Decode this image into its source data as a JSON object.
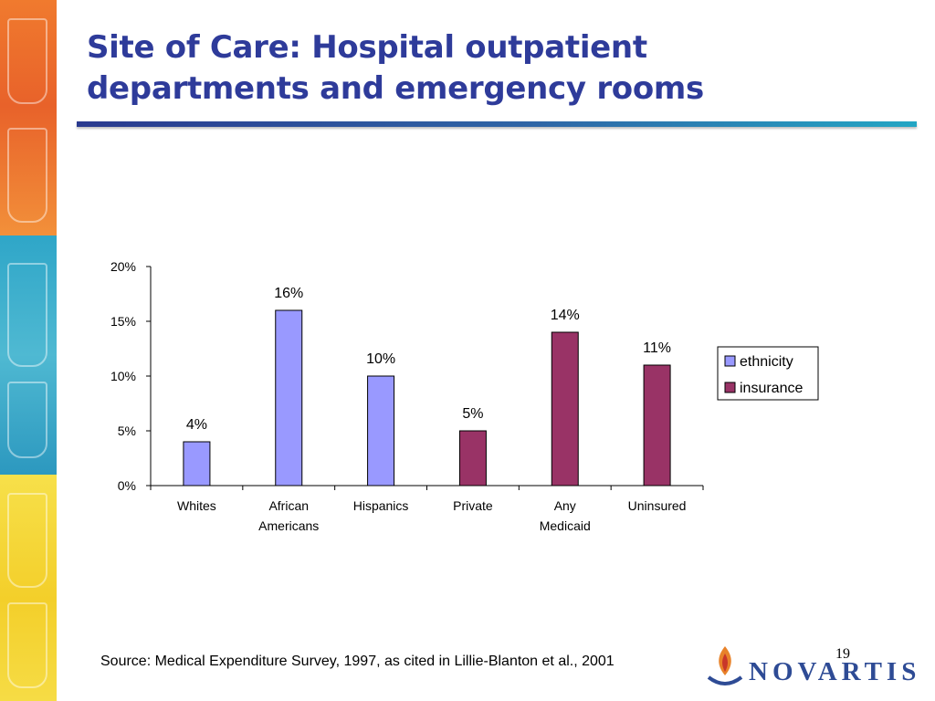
{
  "slide": {
    "title": "Site of Care:  Hospital outpatient\ndepartments and emergency rooms",
    "source": "Source:  Medical Expenditure Survey, 1997, as cited in Lillie-Blanton et al., 2001",
    "page_number": "19",
    "logo_text": "NOVARTIS"
  },
  "colors": {
    "title": "#2e3b9a",
    "ethnicity": "#9999ff",
    "insurance": "#993366"
  },
  "chart_data": {
    "type": "bar",
    "categories": [
      "Whites",
      "African Americans",
      "Hispanics",
      "Private",
      "Any Medicaid",
      "Uninsured"
    ],
    "category_lines": [
      [
        "Whites"
      ],
      [
        "African",
        "Americans"
      ],
      [
        "Hispanics"
      ],
      [
        "Private"
      ],
      [
        "Any",
        "Medicaid"
      ],
      [
        "Uninsured"
      ]
    ],
    "series": [
      {
        "name": "ethnicity",
        "color": "#9999ff",
        "values": [
          4,
          16,
          10,
          null,
          null,
          null
        ]
      },
      {
        "name": "insurance",
        "color": "#993366",
        "values": [
          null,
          null,
          null,
          5,
          14,
          11
        ]
      }
    ],
    "data_labels": [
      "4%",
      "16%",
      "10%",
      "5%",
      "14%",
      "11%"
    ],
    "ylim": [
      0,
      20
    ],
    "yticks": [
      0,
      5,
      10,
      15,
      20
    ],
    "ytick_labels": [
      "0%",
      "5%",
      "10%",
      "15%",
      "20%"
    ],
    "grid": false,
    "legend_position": "right"
  }
}
